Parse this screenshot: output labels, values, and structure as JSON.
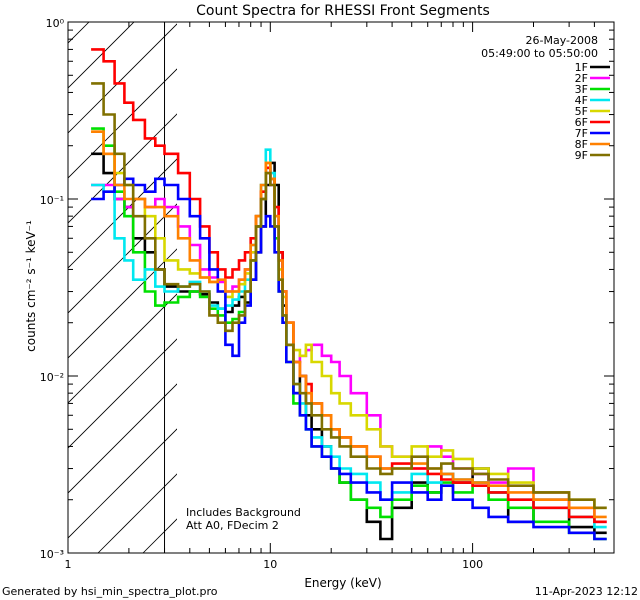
{
  "chart_data": {
    "type": "line",
    "title": "Count Spectra for RHESSI Front Segments",
    "xlabel": "Energy (keV)",
    "ylabel": "counts cm⁻² s⁻¹ keV⁻¹",
    "xscale": "log",
    "yscale": "log",
    "xlim": [
      1,
      500
    ],
    "ylim": [
      0.001,
      1
    ],
    "x_tick_labels": [
      "1",
      "10",
      "100"
    ],
    "y_tick_labels": [
      "10⁻³",
      "10⁻²",
      "10⁻¹",
      "10⁰"
    ],
    "date": "26-May-2008",
    "time_range": "05:49:00 to 05:50:00",
    "annotation_lines": [
      "Includes Background",
      "Att A0, FDecim 2"
    ],
    "hatched_region_xmax": 3,
    "footer_left": "Generated by hsi_min_spectra_plot.pro",
    "footer_right": "11-Apr-2023 12:12",
    "series": [
      {
        "name": "1F",
        "color": "#000000",
        "x": [
          1.3,
          1.5,
          1.7,
          1.9,
          2.1,
          2.4,
          2.7,
          3.0,
          3.5,
          4.0,
          4.5,
          5.0,
          5.5,
          6.0,
          6.5,
          7.0,
          7.5,
          8.0,
          8.5,
          9.0,
          9.5,
          10.0,
          10.5,
          11.0,
          11.5,
          12,
          13,
          14,
          15,
          16,
          18,
          20,
          22,
          25,
          30,
          35,
          40,
          50,
          60,
          70,
          80,
          100,
          120,
          150,
          200,
          300,
          400
        ],
        "y": [
          0.18,
          0.14,
          0.1,
          0.09,
          0.06,
          0.05,
          0.04,
          0.032,
          0.03,
          0.03,
          0.029,
          0.026,
          0.024,
          0.023,
          0.025,
          0.028,
          0.026,
          0.035,
          0.05,
          0.07,
          0.12,
          0.16,
          0.12,
          0.05,
          0.025,
          0.015,
          0.008,
          0.01,
          0.006,
          0.005,
          0.004,
          0.003,
          0.0025,
          0.002,
          0.0015,
          0.0012,
          0.0018,
          0.0025,
          0.0022,
          0.0028,
          0.0025,
          0.003,
          0.0022,
          0.0015,
          0.002,
          0.0014,
          0.0013
        ]
      },
      {
        "name": "2F",
        "color": "#ff00ff",
        "x": [
          1.3,
          1.5,
          1.7,
          1.9,
          2.1,
          2.4,
          2.7,
          3.0,
          3.5,
          4.0,
          4.5,
          5.0,
          5.5,
          6.0,
          6.5,
          7.0,
          7.5,
          8.0,
          8.5,
          9.0,
          9.5,
          10.0,
          10.5,
          11.0,
          11.5,
          12,
          13,
          14,
          15,
          16,
          18,
          20,
          22,
          25,
          30,
          35,
          40,
          50,
          60,
          70,
          80,
          100,
          120,
          150,
          200,
          300,
          400
        ],
        "y": [
          0.12,
          0.12,
          0.1,
          0.09,
          0.1,
          0.09,
          0.1,
          0.09,
          0.07,
          0.055,
          0.04,
          0.036,
          0.034,
          0.03,
          0.032,
          0.035,
          0.04,
          0.05,
          0.07,
          0.1,
          0.14,
          0.12,
          0.08,
          0.045,
          0.03,
          0.02,
          0.012,
          0.013,
          0.014,
          0.015,
          0.013,
          0.012,
          0.01,
          0.008,
          0.006,
          0.004,
          0.0035,
          0.003,
          0.004,
          0.0035,
          0.003,
          0.0028,
          0.0025,
          0.003,
          0.0022,
          0.0018,
          0.0015
        ]
      },
      {
        "name": "3F",
        "color": "#00e000",
        "x": [
          1.3,
          1.5,
          1.7,
          1.9,
          2.1,
          2.4,
          2.7,
          3.0,
          3.5,
          4.0,
          4.5,
          5.0,
          5.5,
          6.0,
          6.5,
          7.0,
          7.5,
          8.0,
          8.5,
          9.0,
          9.5,
          10.0,
          10.5,
          11.0,
          11.5,
          12,
          13,
          14,
          15,
          16,
          18,
          20,
          22,
          25,
          30,
          35,
          40,
          50,
          60,
          70,
          80,
          100,
          120,
          150,
          200,
          300,
          400
        ],
        "y": [
          0.25,
          0.2,
          0.11,
          0.08,
          0.05,
          0.03,
          0.025,
          0.026,
          0.028,
          0.03,
          0.028,
          0.024,
          0.022,
          0.02,
          0.021,
          0.023,
          0.03,
          0.045,
          0.07,
          0.1,
          0.15,
          0.13,
          0.06,
          0.03,
          0.02,
          0.012,
          0.007,
          0.006,
          0.005,
          0.004,
          0.0035,
          0.003,
          0.0025,
          0.002,
          0.0018,
          0.0016,
          0.002,
          0.0024,
          0.0022,
          0.0025,
          0.0022,
          0.0025,
          0.002,
          0.0018,
          0.0015,
          0.0013,
          0.0012
        ]
      },
      {
        "name": "4F",
        "color": "#00e8f0",
        "x": [
          1.3,
          1.5,
          1.7,
          1.9,
          2.1,
          2.4,
          2.7,
          3.0,
          3.5,
          4.0,
          4.5,
          5.0,
          5.5,
          6.0,
          6.5,
          7.0,
          7.5,
          8.0,
          8.5,
          9.0,
          9.5,
          10.0,
          10.5,
          11.0,
          11.5,
          12,
          13,
          14,
          15,
          16,
          18,
          20,
          22,
          25,
          30,
          35,
          40,
          50,
          60,
          70,
          80,
          100,
          120,
          150,
          200,
          300,
          400
        ],
        "y": [
          0.12,
          0.11,
          0.06,
          0.045,
          0.035,
          0.04,
          0.032,
          0.03,
          0.032,
          0.034,
          0.03,
          0.025,
          0.024,
          0.025,
          0.027,
          0.03,
          0.035,
          0.055,
          0.08,
          0.12,
          0.19,
          0.14,
          0.07,
          0.035,
          0.022,
          0.015,
          0.009,
          0.007,
          0.005,
          0.0045,
          0.004,
          0.0035,
          0.003,
          0.0028,
          0.0025,
          0.002,
          0.0022,
          0.0028,
          0.0025,
          0.0028,
          0.0026,
          0.0025,
          0.0022,
          0.002,
          0.0018,
          0.0016,
          0.0014
        ]
      },
      {
        "name": "5F",
        "color": "#d8d800",
        "x": [
          1.3,
          1.5,
          1.7,
          1.9,
          2.1,
          2.4,
          2.7,
          3.0,
          3.5,
          4.0,
          4.5,
          5.0,
          5.5,
          6.0,
          6.5,
          7.0,
          7.5,
          8.0,
          8.5,
          9.0,
          9.5,
          10.0,
          10.5,
          11.0,
          11.5,
          12,
          13,
          14,
          15,
          16,
          18,
          20,
          22,
          25,
          30,
          35,
          40,
          50,
          60,
          70,
          80,
          100,
          120,
          150,
          200,
          300,
          400
        ],
        "y": [
          0.24,
          0.18,
          0.14,
          0.12,
          0.1,
          0.08,
          0.06,
          0.045,
          0.04,
          0.038,
          0.036,
          0.034,
          0.03,
          0.028,
          0.03,
          0.033,
          0.038,
          0.05,
          0.08,
          0.11,
          0.16,
          0.13,
          0.07,
          0.04,
          0.028,
          0.02,
          0.014,
          0.013,
          0.015,
          0.012,
          0.01,
          0.008,
          0.007,
          0.006,
          0.005,
          0.004,
          0.0035,
          0.004,
          0.0035,
          0.0038,
          0.0034,
          0.003,
          0.0028,
          0.0025,
          0.0022,
          0.002,
          0.0018
        ]
      },
      {
        "name": "6F",
        "color": "#ff0000",
        "x": [
          1.3,
          1.5,
          1.7,
          1.9,
          2.1,
          2.4,
          2.7,
          3.0,
          3.5,
          4.0,
          4.5,
          5.0,
          5.5,
          6.0,
          6.5,
          7.0,
          7.5,
          8.0,
          8.5,
          9.0,
          9.5,
          10.0,
          10.5,
          11.0,
          11.5,
          12,
          13,
          14,
          15,
          16,
          18,
          20,
          22,
          25,
          30,
          35,
          40,
          50,
          60,
          70,
          80,
          100,
          120,
          150,
          200,
          300,
          400
        ],
        "y": [
          0.7,
          0.6,
          0.45,
          0.35,
          0.28,
          0.22,
          0.2,
          0.18,
          0.14,
          0.1,
          0.07,
          0.05,
          0.04,
          0.036,
          0.04,
          0.045,
          0.05,
          0.06,
          0.08,
          0.11,
          0.15,
          0.13,
          0.09,
          0.05,
          0.03,
          0.02,
          0.012,
          0.01,
          0.009,
          0.007,
          0.006,
          0.005,
          0.0045,
          0.004,
          0.0035,
          0.003,
          0.0032,
          0.003,
          0.0028,
          0.0026,
          0.0025,
          0.0024,
          0.0022,
          0.002,
          0.0018,
          0.0016,
          0.0015
        ]
      },
      {
        "name": "7F",
        "color": "#0000ff",
        "x": [
          1.3,
          1.5,
          1.7,
          1.9,
          2.1,
          2.4,
          2.7,
          3.0,
          3.5,
          4.0,
          4.5,
          5.0,
          5.5,
          6.0,
          6.5,
          7.0,
          7.5,
          8.0,
          8.5,
          9.0,
          9.5,
          10.0,
          10.5,
          11.0,
          11.5,
          12,
          13,
          14,
          15,
          16,
          18,
          20,
          22,
          25,
          30,
          35,
          40,
          50,
          60,
          70,
          80,
          100,
          120,
          150,
          200,
          300,
          400
        ],
        "y": [
          0.1,
          0.11,
          0.12,
          0.13,
          0.12,
          0.11,
          0.13,
          0.12,
          0.1,
          0.08,
          0.06,
          0.04,
          0.03,
          0.015,
          0.013,
          0.02,
          0.025,
          0.035,
          0.05,
          0.07,
          0.08,
          0.07,
          0.05,
          0.03,
          0.02,
          0.012,
          0.008,
          0.006,
          0.005,
          0.004,
          0.0035,
          0.003,
          0.0028,
          0.0025,
          0.0022,
          0.002,
          0.0025,
          0.0022,
          0.002,
          0.0024,
          0.002,
          0.0018,
          0.0016,
          0.0015,
          0.0014,
          0.0013,
          0.0012
        ]
      },
      {
        "name": "8F",
        "color": "#ff8000",
        "x": [
          1.3,
          1.5,
          1.7,
          1.9,
          2.1,
          2.4,
          2.7,
          3.0,
          3.5,
          4.0,
          4.5,
          5.0,
          5.5,
          6.0,
          6.5,
          7.0,
          7.5,
          8.0,
          8.5,
          9.0,
          9.5,
          10.0,
          10.5,
          11.0,
          11.5,
          12,
          13,
          14,
          15,
          16,
          18,
          20,
          22,
          25,
          30,
          35,
          40,
          50,
          60,
          70,
          80,
          100,
          120,
          150,
          200,
          300,
          400
        ],
        "y": [
          0.24,
          0.18,
          0.12,
          0.1,
          0.1,
          0.09,
          0.09,
          0.08,
          0.06,
          0.045,
          0.036,
          0.034,
          0.035,
          0.03,
          0.03,
          0.035,
          0.04,
          0.055,
          0.08,
          0.12,
          0.16,
          0.13,
          0.08,
          0.045,
          0.03,
          0.02,
          0.012,
          0.01,
          0.008,
          0.007,
          0.006,
          0.005,
          0.0045,
          0.004,
          0.0035,
          0.003,
          0.003,
          0.0032,
          0.003,
          0.0028,
          0.0026,
          0.0025,
          0.0024,
          0.0022,
          0.002,
          0.0018,
          0.0016
        ]
      },
      {
        "name": "9F",
        "color": "#807000",
        "x": [
          1.3,
          1.5,
          1.7,
          1.9,
          2.1,
          2.4,
          2.7,
          3.0,
          3.5,
          4.0,
          4.5,
          5.0,
          5.5,
          6.0,
          6.5,
          7.0,
          7.5,
          8.0,
          8.5,
          9.0,
          9.5,
          10.0,
          10.5,
          11.0,
          11.5,
          12,
          13,
          14,
          15,
          16,
          18,
          20,
          22,
          25,
          30,
          35,
          40,
          50,
          60,
          70,
          80,
          100,
          120,
          150,
          200,
          300,
          400
        ],
        "y": [
          0.45,
          0.3,
          0.18,
          0.12,
          0.08,
          0.06,
          0.04,
          0.033,
          0.032,
          0.033,
          0.03,
          0.022,
          0.02,
          0.018,
          0.02,
          0.022,
          0.03,
          0.045,
          0.07,
          0.1,
          0.14,
          0.12,
          0.07,
          0.035,
          0.022,
          0.015,
          0.009,
          0.008,
          0.007,
          0.006,
          0.005,
          0.0045,
          0.004,
          0.0035,
          0.003,
          0.0028,
          0.003,
          0.0035,
          0.003,
          0.0032,
          0.003,
          0.0028,
          0.0026,
          0.0024,
          0.0022,
          0.002,
          0.0018
        ]
      }
    ]
  }
}
